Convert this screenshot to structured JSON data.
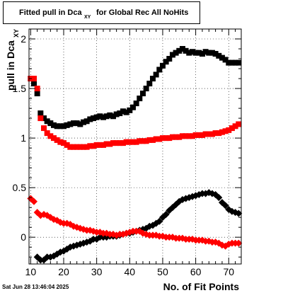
{
  "title": {
    "main": "Fitted pull in Dca",
    "subscript": "XY",
    "tail": " for Global Rec All NoHits"
  },
  "footer": {
    "date": "Sat Jun 28 13:46:04 2025"
  },
  "chart_data": {
    "type": "scatter",
    "xlabel": "No. of Fit Points",
    "ylabel": "pull in Dca",
    "ylabel_subscript": "XY",
    "xlim": [
      9.5,
      73.8
    ],
    "ylim": [
      -0.27,
      2.1
    ],
    "x_ticks": [
      10,
      20,
      30,
      40,
      50,
      60,
      70
    ],
    "y_ticks": [
      0,
      0.5,
      1,
      1.5,
      2
    ],
    "grid": true,
    "series": [
      {
        "marker": "square",
        "color": "#000000",
        "x": [
          10,
          11,
          12,
          13,
          14,
          15,
          16,
          17,
          18,
          19,
          20,
          21,
          22,
          23,
          24,
          25,
          26,
          27,
          28,
          29,
          30,
          31,
          32,
          33,
          34,
          35,
          36,
          37,
          38,
          39,
          40,
          41,
          42,
          43,
          44,
          45,
          46,
          47,
          48,
          49,
          50,
          51,
          52,
          53,
          54,
          55,
          56,
          57,
          58,
          59,
          60,
          61,
          62,
          63,
          64,
          65,
          66,
          67,
          68,
          69,
          70,
          71,
          72,
          73
        ],
        "y": [
          1.6,
          1.55,
          1.45,
          1.25,
          1.2,
          1.17,
          1.15,
          1.13,
          1.12,
          1.12,
          1.12,
          1.13,
          1.14,
          1.15,
          1.15,
          1.14,
          1.16,
          1.17,
          1.19,
          1.2,
          1.21,
          1.22,
          1.21,
          1.22,
          1.23,
          1.22,
          1.24,
          1.25,
          1.27,
          1.26,
          1.28,
          1.31,
          1.35,
          1.4,
          1.45,
          1.5,
          1.55,
          1.6,
          1.64,
          1.69,
          1.73,
          1.77,
          1.8,
          1.84,
          1.86,
          1.88,
          1.9,
          1.88,
          1.86,
          1.87,
          1.86,
          1.86,
          1.85,
          1.87,
          1.86,
          1.86,
          1.85,
          1.83,
          1.81,
          1.79,
          1.76,
          1.76,
          1.76,
          1.76
        ]
      },
      {
        "marker": "square",
        "color": "#ff0000",
        "x": [
          10,
          11,
          12,
          13,
          14,
          15,
          16,
          17,
          18,
          19,
          20,
          21,
          22,
          23,
          24,
          25,
          26,
          27,
          28,
          29,
          30,
          31,
          32,
          33,
          34,
          35,
          36,
          37,
          38,
          39,
          40,
          41,
          42,
          43,
          44,
          45,
          46,
          47,
          48,
          49,
          50,
          51,
          52,
          53,
          54,
          55,
          56,
          57,
          58,
          59,
          60,
          61,
          62,
          63,
          64,
          65,
          66,
          67,
          68,
          69,
          70,
          71,
          72,
          73
        ],
        "y": [
          1.6,
          1.6,
          1.5,
          1.2,
          1.1,
          1.05,
          1.02,
          1.0,
          0.98,
          0.96,
          0.95,
          0.93,
          0.91,
          0.91,
          0.91,
          0.91,
          0.91,
          0.91,
          0.92,
          0.92,
          0.93,
          0.93,
          0.93,
          0.94,
          0.94,
          0.95,
          0.95,
          0.95,
          0.95,
          0.96,
          0.96,
          0.96,
          0.96,
          0.97,
          0.97,
          0.97,
          0.98,
          0.98,
          0.99,
          0.99,
          1.0,
          1.0,
          1.0,
          1.01,
          1.01,
          1.01,
          1.02,
          1.02,
          1.02,
          1.02,
          1.03,
          1.03,
          1.03,
          1.04,
          1.04,
          1.04,
          1.05,
          1.05,
          1.06,
          1.07,
          1.08,
          1.1,
          1.12,
          1.14
        ]
      },
      {
        "marker": "diamond",
        "color": "#000000",
        "x": [
          12,
          13,
          14,
          15,
          16,
          17,
          18,
          19,
          20,
          21,
          22,
          23,
          24,
          25,
          26,
          27,
          28,
          29,
          30,
          31,
          32,
          33,
          34,
          35,
          36,
          37,
          38,
          39,
          40,
          41,
          42,
          43,
          44,
          45,
          46,
          47,
          48,
          49,
          50,
          51,
          52,
          53,
          54,
          55,
          56,
          57,
          58,
          59,
          60,
          61,
          62,
          63,
          64,
          65,
          66,
          67,
          68,
          69,
          70,
          71,
          72,
          73
        ],
        "y": [
          -0.2,
          -0.23,
          -0.23,
          -0.2,
          -0.2,
          -0.19,
          -0.17,
          -0.15,
          -0.14,
          -0.12,
          -0.1,
          -0.09,
          -0.08,
          -0.07,
          -0.06,
          -0.05,
          -0.04,
          -0.02,
          -0.02,
          0.0,
          0.0,
          0.0,
          0.01,
          0.01,
          0.01,
          0.02,
          0.03,
          0.04,
          0.04,
          0.05,
          0.06,
          0.07,
          0.08,
          0.09,
          0.11,
          0.12,
          0.14,
          0.16,
          0.2,
          0.23,
          0.27,
          0.3,
          0.33,
          0.36,
          0.38,
          0.39,
          0.4,
          0.41,
          0.42,
          0.43,
          0.44,
          0.44,
          0.45,
          0.44,
          0.43,
          0.4,
          0.35,
          0.32,
          0.28,
          0.26,
          0.25,
          0.24
        ]
      },
      {
        "marker": "diamond",
        "color": "#ff0000",
        "x": [
          10,
          11,
          12,
          13,
          14,
          15,
          16,
          17,
          18,
          19,
          20,
          21,
          22,
          23,
          24,
          25,
          26,
          27,
          28,
          29,
          30,
          31,
          32,
          33,
          34,
          35,
          36,
          37,
          38,
          39,
          40,
          41,
          42,
          43,
          44,
          45,
          46,
          47,
          48,
          49,
          50,
          51,
          52,
          53,
          54,
          55,
          56,
          57,
          58,
          59,
          60,
          61,
          62,
          63,
          64,
          65,
          66,
          67,
          68,
          69,
          70,
          71,
          72,
          73
        ],
        "y": [
          0.39,
          0.36,
          0.25,
          0.22,
          0.23,
          0.22,
          0.2,
          0.18,
          0.17,
          0.15,
          0.14,
          0.14,
          0.13,
          0.11,
          0.1,
          0.09,
          0.08,
          0.07,
          0.07,
          0.06,
          0.05,
          0.05,
          0.04,
          0.04,
          0.03,
          0.03,
          0.02,
          0.03,
          0.03,
          0.04,
          0.05,
          0.06,
          0.06,
          0.06,
          0.04,
          0.03,
          0.02,
          0.02,
          0.02,
          0.01,
          0.01,
          0.0,
          0.0,
          0.0,
          -0.01,
          -0.01,
          -0.01,
          -0.02,
          -0.02,
          -0.02,
          -0.03,
          -0.03,
          -0.03,
          -0.04,
          -0.04,
          -0.05,
          -0.05,
          -0.06,
          -0.08,
          -0.09,
          -0.07,
          -0.06,
          -0.06,
          -0.06
        ]
      }
    ]
  }
}
